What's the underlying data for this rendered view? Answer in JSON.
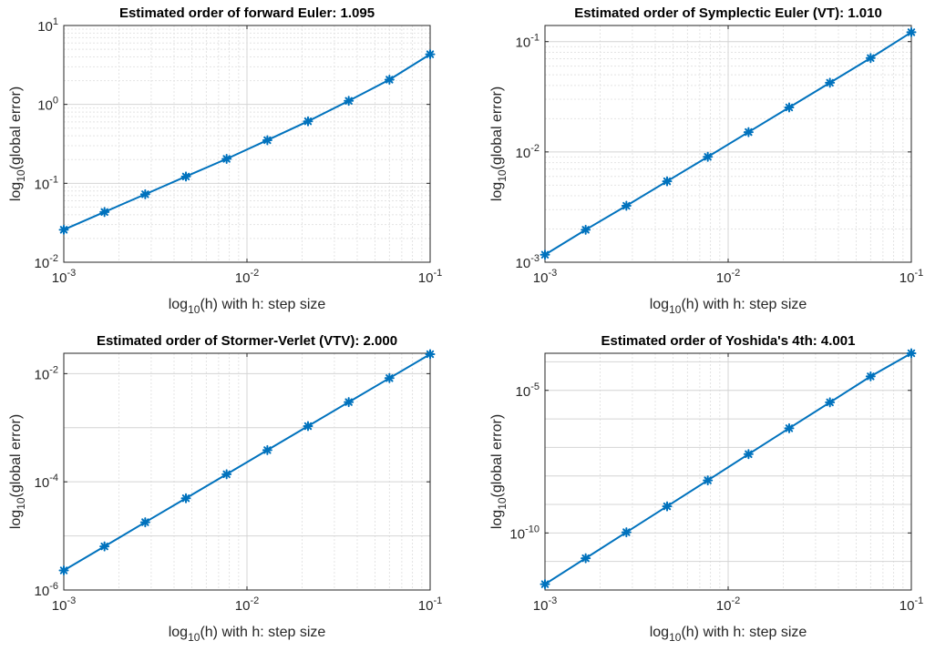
{
  "chart_data": [
    {
      "type": "line",
      "title": "Estimated order of forward Euler: 1.095",
      "xlabel": {
        "pre": "log",
        "sub": "10",
        "post": "(h) with h: step size"
      },
      "ylabel": {
        "pre": "log",
        "sub": "10",
        "post": "(global error)"
      },
      "xscale": "log",
      "yscale": "log",
      "xlim": [
        0.001,
        0.1
      ],
      "ylim": [
        0.01,
        10
      ],
      "xticks": [
        {
          "base": "10",
          "exp": "-3"
        },
        {
          "base": "10",
          "exp": "-2"
        },
        {
          "base": "10",
          "exp": "-1"
        }
      ],
      "yticks": [
        {
          "base": "10",
          "exp": "-2"
        },
        {
          "base": "10",
          "exp": "-1"
        },
        {
          "base": "10",
          "exp": "0"
        },
        {
          "base": "10",
          "exp": "1"
        }
      ],
      "grid": true,
      "color": "#0072bd",
      "marker": "asterisk",
      "x": [
        0.001,
        0.001668,
        0.002783,
        0.004642,
        0.007743,
        0.01292,
        0.02154,
        0.03594,
        0.05995,
        0.1
      ],
      "y": [
        0.0258,
        0.0433,
        0.0726,
        0.122,
        0.204,
        0.352,
        0.611,
        1.11,
        2.06,
        4.32
      ]
    },
    {
      "type": "line",
      "title": "Estimated order of Symplectic Euler (VT): 1.010",
      "xlabel": {
        "pre": "log",
        "sub": "10",
        "post": "(h) with h: step size"
      },
      "ylabel": {
        "pre": "log",
        "sub": "10",
        "post": "(global error)"
      },
      "xscale": "log",
      "yscale": "log",
      "xlim": [
        0.001,
        0.1
      ],
      "ylim": [
        0.001,
        0.14
      ],
      "xticks": [
        {
          "base": "10",
          "exp": "-3"
        },
        {
          "base": "10",
          "exp": "-2"
        },
        {
          "base": "10",
          "exp": "-1"
        }
      ],
      "yticks": [
        {
          "base": "10",
          "exp": "-3"
        },
        {
          "base": "10",
          "exp": "-2"
        },
        {
          "base": "10",
          "exp": "-1"
        }
      ],
      "grid": true,
      "color": "#0072bd",
      "marker": "asterisk",
      "x": [
        0.001,
        0.001668,
        0.002783,
        0.004642,
        0.007743,
        0.01292,
        0.02154,
        0.03594,
        0.05995,
        0.1
      ],
      "y": [
        0.00117,
        0.00197,
        0.00325,
        0.00542,
        0.00903,
        0.01513,
        0.02531,
        0.04237,
        0.07095,
        0.1216
      ]
    },
    {
      "type": "line",
      "title": "Estimated order of Stormer-Verlet (VTV): 2.000",
      "xlabel": {
        "pre": "log",
        "sub": "10",
        "post": "(h) with h: step size"
      },
      "ylabel": {
        "pre": "log",
        "sub": "10",
        "post": "(global error)"
      },
      "xscale": "log",
      "yscale": "log",
      "xlim": [
        0.001,
        0.1
      ],
      "ylim": [
        1e-06,
        0.0238
      ],
      "xticks": [
        {
          "base": "10",
          "exp": "-3"
        },
        {
          "base": "10",
          "exp": "-2"
        },
        {
          "base": "10",
          "exp": "-1"
        }
      ],
      "yticks": [
        {
          "base": "10",
          "exp": "-6"
        },
        {
          "base": "10",
          "exp": "-4"
        },
        {
          "base": "10",
          "exp": "-2"
        }
      ],
      "grid": true,
      "color": "#0072bd",
      "marker": "asterisk",
      "x": [
        0.001,
        0.001668,
        0.002783,
        0.004642,
        0.007743,
        0.01292,
        0.02154,
        0.03594,
        0.05995,
        0.1
      ],
      "y": [
        2.3e-06,
        6.4e-06,
        1.79e-05,
        4.97e-05,
        0.000138,
        0.000385,
        0.00107,
        0.00298,
        0.00826,
        0.0229
      ]
    },
    {
      "type": "line",
      "title": "Estimated order of Yoshida's 4th: 4.001",
      "xlabel": {
        "pre": "log",
        "sub": "10",
        "post": "(h) with h: step size"
      },
      "ylabel": {
        "pre": "log",
        "sub": "10",
        "post": "(global error)"
      },
      "xscale": "log",
      "yscale": "log",
      "xlim": [
        0.001,
        0.1
      ],
      "ylim": [
        1e-12,
        0.0002
      ],
      "xticks": [
        {
          "base": "10",
          "exp": "-3"
        },
        {
          "base": "10",
          "exp": "-2"
        },
        {
          "base": "10",
          "exp": "-1"
        }
      ],
      "yticks": [
        {
          "base": "10",
          "exp": "-10"
        },
        {
          "base": "10",
          "exp": "-5"
        }
      ],
      "grid": true,
      "color": "#0072bd",
      "marker": "asterisk",
      "x": [
        0.001,
        0.001668,
        0.002783,
        0.004642,
        0.007743,
        0.01292,
        0.02154,
        0.03594,
        0.05995,
        0.1
      ],
      "y": [
        1.6e-12,
        1.3e-11,
        1.06e-10,
        8.6e-10,
        7e-09,
        5.8e-08,
        4.7e-07,
        3.8e-06,
        3.1e-05,
        0.0002
      ]
    }
  ]
}
